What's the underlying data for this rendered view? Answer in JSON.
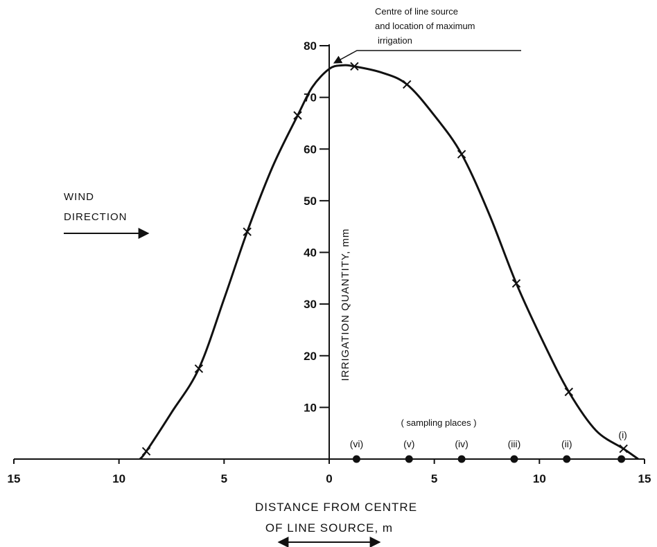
{
  "chart_data": {
    "type": "line",
    "title": "",
    "xlabel": "DISTANCE FROM CENTRE OF LINE SOURCE, m",
    "xlabel_lines": [
      "DISTANCE FROM CENTRE",
      "OF LINE SOURCE,  m"
    ],
    "ylabel": "IRRIGATION QUANTITY,  mm",
    "x_direction": "distance from centre on each side (upwind left, downwind right)",
    "x_ticks": [
      -15,
      -10,
      -5,
      0,
      5,
      10,
      15
    ],
    "x_tick_labels": [
      "15",
      "10",
      "5",
      "0",
      "5",
      "10",
      "15"
    ],
    "y_ticks": [
      10,
      20,
      30,
      40,
      50,
      60,
      70,
      80
    ],
    "y_tick_labels": [
      "10",
      "20",
      "30",
      "40",
      "50",
      "60",
      "70",
      "80"
    ],
    "xlim": [
      -15,
      15
    ],
    "ylim": [
      0,
      80
    ],
    "grid": false,
    "legend": "none",
    "series": [
      {
        "kind": "measured points",
        "marker": "x",
        "x": [
          -8.7,
          -6.2,
          -3.9,
          -1.5,
          1.2,
          3.7,
          6.3,
          8.9,
          11.4,
          14.0
        ],
        "y": [
          1.5,
          17.5,
          44.0,
          66.5,
          76.0,
          72.5,
          59.0,
          34.0,
          13.0,
          2.0
        ]
      },
      {
        "kind": "fitted curve",
        "marker": "none",
        "x": [
          -9.0,
          -8.7,
          -7.5,
          -6.2,
          -5.0,
          -3.9,
          -2.7,
          -1.5,
          -0.8,
          0.0,
          0.6,
          1.2,
          2.5,
          3.7,
          5.0,
          6.3,
          7.6,
          8.9,
          10.2,
          11.4,
          12.7,
          14.0,
          14.7
        ],
        "y": [
          0.0,
          1.5,
          9.0,
          17.5,
          31.0,
          44.0,
          56.5,
          66.5,
          72.0,
          75.5,
          76.2,
          76.0,
          74.8,
          72.5,
          66.5,
          59.0,
          47.5,
          34.0,
          22.5,
          13.0,
          5.5,
          2.0,
          0.0
        ]
      }
    ],
    "sampling_places": {
      "title": "( sampling places )",
      "labels": [
        "(vi)",
        "(v)",
        "(iv)",
        "(iii)",
        "(ii)",
        "(i)"
      ],
      "x": [
        1.3,
        3.8,
        6.3,
        8.8,
        11.3,
        13.9
      ]
    },
    "annotations": {
      "max_note_lines": [
        "Centre  of  line  source",
        "and location of maximum",
        "irrigation"
      ],
      "wind_lines": [
        "WIND",
        "DIRECTION"
      ]
    },
    "colors": {
      "ink": "#111111",
      "background": "#ffffff"
    }
  }
}
